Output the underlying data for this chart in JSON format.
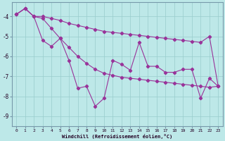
{
  "x": [
    0,
    1,
    2,
    3,
    4,
    5,
    6,
    7,
    8,
    9,
    10,
    11,
    12,
    13,
    14,
    15,
    16,
    17,
    18,
    19,
    20,
    21,
    22,
    23
  ],
  "series_zigzag": [
    -3.9,
    -3.6,
    -4.0,
    -5.2,
    -5.5,
    -5.1,
    -6.2,
    -7.6,
    -7.5,
    -8.5,
    -8.1,
    -6.2,
    -6.4,
    -6.7,
    -5.3,
    -6.5,
    -6.5,
    -6.8,
    -6.8,
    -6.65,
    -6.65,
    -8.1,
    -7.1,
    -7.5
  ],
  "series_upper": [
    -3.9,
    -3.6,
    -4.0,
    -4.0,
    -4.1,
    -4.2,
    -4.35,
    -4.45,
    -4.55,
    -4.65,
    -4.75,
    -4.8,
    -4.85,
    -4.9,
    -4.95,
    -5.0,
    -5.05,
    -5.1,
    -5.15,
    -5.2,
    -5.25,
    -5.3,
    -5.0,
    -7.5
  ],
  "series_lower": [
    -3.9,
    -3.6,
    -4.0,
    -4.1,
    -4.6,
    -5.1,
    -5.55,
    -6.0,
    -6.35,
    -6.65,
    -6.85,
    -6.95,
    -7.05,
    -7.1,
    -7.15,
    -7.2,
    -7.25,
    -7.3,
    -7.35,
    -7.4,
    -7.45,
    -7.5,
    -7.55,
    -7.5
  ],
  "ylim": [
    -9.5,
    -3.3
  ],
  "yticks": [
    -9,
    -8,
    -7,
    -6,
    -5,
    -4
  ],
  "xticks": [
    0,
    1,
    2,
    3,
    4,
    5,
    6,
    7,
    8,
    9,
    10,
    11,
    12,
    13,
    14,
    15,
    16,
    17,
    18,
    19,
    20,
    21,
    22,
    23
  ],
  "xlabel": "Windchill (Refroidissement éolien,°C)",
  "color": "#993399",
  "bg_color": "#bde8e8",
  "grid_color": "#99cccc",
  "spine_color": "#7799aa"
}
